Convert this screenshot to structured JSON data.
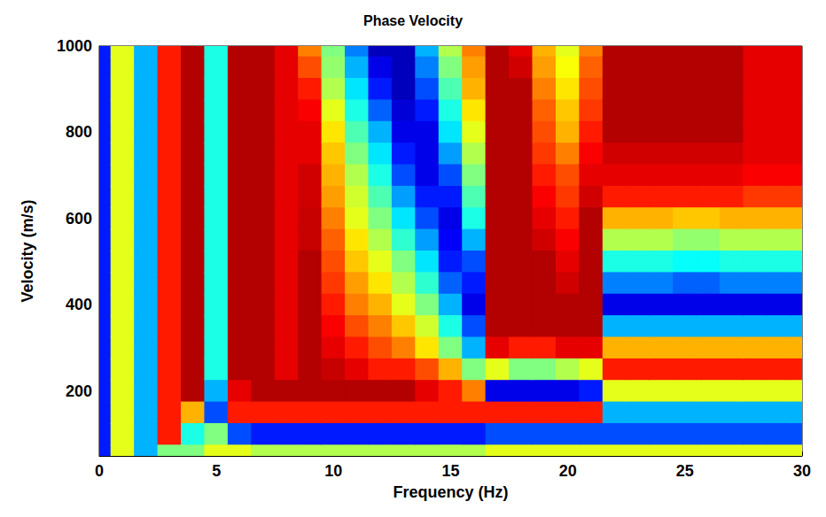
{
  "chart_data": {
    "type": "heatmap",
    "title": "Phase Velocity",
    "x_label": "Frequency (Hz)",
    "y_label": "Velocity (m/s)",
    "xlim": [
      0,
      30
    ],
    "xticks": [
      0,
      5,
      10,
      15,
      20,
      25,
      30
    ],
    "ylim": [
      50,
      1000
    ],
    "yticks": [
      200,
      400,
      600,
      800,
      1000
    ],
    "grid": false,
    "zlim": [
      0,
      1
    ],
    "cell_x": [
      0,
      1,
      2,
      3,
      4,
      5,
      6,
      7,
      8,
      9,
      10,
      11,
      12,
      13,
      14,
      15,
      16,
      17,
      18,
      19,
      20,
      21,
      22,
      23,
      24,
      25,
      26,
      27,
      28,
      29,
      30
    ],
    "cell_y": [
      1000,
      950,
      900,
      850,
      800,
      750,
      700,
      650,
      600,
      550,
      500,
      450,
      400,
      350,
      300,
      250,
      200,
      150,
      100,
      50
    ],
    "cells": [
      [
        0.15,
        0.15,
        0.15,
        0.15,
        0.15,
        0.15,
        0.15,
        0.15,
        0.15,
        0.15,
        0.15,
        0.15,
        0.15,
        0.15,
        0.15,
        0.15,
        0.15,
        0.15,
        0.15,
        0.15
      ],
      [
        0.6,
        0.6,
        0.6,
        0.6,
        0.6,
        0.6,
        0.6,
        0.6,
        0.6,
        0.6,
        0.6,
        0.6,
        0.6,
        0.6,
        0.6,
        0.6,
        0.6,
        0.6,
        0.6,
        0.6
      ],
      [
        0.3,
        0.3,
        0.3,
        0.3,
        0.3,
        0.3,
        0.3,
        0.3,
        0.3,
        0.3,
        0.3,
        0.3,
        0.3,
        0.3,
        0.3,
        0.3,
        0.3,
        0.3,
        0.3,
        0.3
      ],
      [
        0.85,
        0.85,
        0.85,
        0.85,
        0.85,
        0.85,
        0.85,
        0.85,
        0.85,
        0.85,
        0.85,
        0.85,
        0.85,
        0.85,
        0.85,
        0.85,
        0.85,
        0.85,
        0.85,
        0.5
      ],
      [
        0.95,
        0.95,
        0.95,
        0.95,
        0.95,
        0.95,
        0.95,
        0.95,
        0.95,
        0.95,
        0.95,
        0.95,
        0.95,
        0.95,
        0.95,
        0.95,
        0.95,
        0.7,
        0.4,
        0.5
      ],
      [
        0.4,
        0.4,
        0.4,
        0.4,
        0.4,
        0.4,
        0.4,
        0.4,
        0.4,
        0.4,
        0.4,
        0.4,
        0.4,
        0.4,
        0.4,
        0.4,
        0.3,
        0.2,
        0.5,
        0.6
      ],
      [
        0.95,
        0.95,
        0.95,
        0.95,
        0.95,
        0.95,
        0.95,
        0.95,
        0.95,
        0.95,
        0.95,
        0.95,
        0.95,
        0.95,
        0.95,
        0.95,
        0.9,
        0.85,
        0.2,
        0.6
      ],
      [
        0.95,
        0.95,
        0.95,
        0.95,
        0.95,
        0.95,
        0.95,
        0.95,
        0.95,
        0.95,
        0.95,
        0.95,
        0.95,
        0.95,
        0.95,
        0.95,
        0.95,
        0.85,
        0.15,
        0.55
      ],
      [
        0.9,
        0.9,
        0.9,
        0.9,
        0.9,
        0.9,
        0.9,
        0.9,
        0.9,
        0.9,
        0.9,
        0.9,
        0.9,
        0.9,
        0.9,
        0.9,
        0.95,
        0.85,
        0.15,
        0.55
      ],
      [
        0.75,
        0.8,
        0.85,
        0.88,
        0.9,
        0.9,
        0.92,
        0.92,
        0.93,
        0.93,
        0.95,
        0.95,
        0.95,
        0.95,
        0.95,
        0.95,
        0.95,
        0.85,
        0.15,
        0.55
      ],
      [
        0.5,
        0.52,
        0.55,
        0.6,
        0.65,
        0.68,
        0.7,
        0.72,
        0.75,
        0.78,
        0.8,
        0.82,
        0.85,
        0.88,
        0.9,
        0.93,
        0.95,
        0.85,
        0.15,
        0.55
      ],
      [
        0.25,
        0.3,
        0.35,
        0.4,
        0.45,
        0.5,
        0.55,
        0.58,
        0.6,
        0.65,
        0.68,
        0.72,
        0.75,
        0.8,
        0.85,
        0.9,
        0.95,
        0.85,
        0.15,
        0.55
      ],
      [
        0.05,
        0.1,
        0.15,
        0.22,
        0.3,
        0.35,
        0.4,
        0.45,
        0.5,
        0.55,
        0.6,
        0.65,
        0.7,
        0.75,
        0.8,
        0.85,
        0.95,
        0.85,
        0.15,
        0.55
      ],
      [
        0.05,
        0.05,
        0.05,
        0.08,
        0.1,
        0.15,
        0.2,
        0.28,
        0.35,
        0.42,
        0.5,
        0.55,
        0.6,
        0.68,
        0.75,
        0.85,
        0.95,
        0.85,
        0.15,
        0.55
      ],
      [
        0.3,
        0.25,
        0.2,
        0.15,
        0.1,
        0.1,
        0.1,
        0.15,
        0.2,
        0.28,
        0.35,
        0.42,
        0.5,
        0.58,
        0.65,
        0.8,
        0.9,
        0.85,
        0.15,
        0.55
      ],
      [
        0.55,
        0.5,
        0.45,
        0.4,
        0.35,
        0.28,
        0.2,
        0.15,
        0.1,
        0.12,
        0.15,
        0.22,
        0.3,
        0.4,
        0.5,
        0.7,
        0.85,
        0.85,
        0.15,
        0.55
      ],
      [
        0.75,
        0.72,
        0.7,
        0.65,
        0.6,
        0.55,
        0.5,
        0.45,
        0.4,
        0.3,
        0.2,
        0.15,
        0.1,
        0.2,
        0.3,
        0.5,
        0.75,
        0.85,
        0.15,
        0.55
      ],
      [
        0.95,
        0.95,
        0.95,
        0.95,
        0.95,
        0.95,
        0.95,
        0.95,
        0.95,
        0.95,
        0.95,
        0.95,
        0.95,
        0.95,
        0.9,
        0.6,
        0.1,
        0.85,
        0.2,
        0.6
      ],
      [
        0.9,
        0.92,
        0.95,
        0.95,
        0.95,
        0.95,
        0.95,
        0.95,
        0.95,
        0.95,
        0.95,
        0.95,
        0.95,
        0.95,
        0.85,
        0.5,
        0.1,
        0.85,
        0.2,
        0.6
      ],
      [
        0.7,
        0.72,
        0.75,
        0.78,
        0.8,
        0.82,
        0.85,
        0.88,
        0.9,
        0.92,
        0.95,
        0.95,
        0.95,
        0.95,
        0.85,
        0.5,
        0.1,
        0.85,
        0.2,
        0.6
      ],
      [
        0.6,
        0.62,
        0.65,
        0.68,
        0.7,
        0.75,
        0.8,
        0.82,
        0.85,
        0.88,
        0.9,
        0.92,
        0.95,
        0.95,
        0.9,
        0.55,
        0.1,
        0.85,
        0.2,
        0.6
      ],
      [
        0.75,
        0.78,
        0.8,
        0.82,
        0.85,
        0.88,
        0.9,
        0.92,
        0.95,
        0.95,
        0.95,
        0.95,
        0.95,
        0.95,
        0.9,
        0.6,
        0.15,
        0.85,
        0.2,
        0.6
      ],
      [
        0.95,
        0.95,
        0.95,
        0.95,
        0.95,
        0.92,
        0.9,
        0.85,
        0.7,
        0.55,
        0.4,
        0.25,
        0.1,
        0.3,
        0.7,
        0.85,
        0.6,
        0.3,
        0.2,
        0.6
      ],
      [
        0.95,
        0.95,
        0.95,
        0.95,
        0.95,
        0.92,
        0.9,
        0.85,
        0.7,
        0.55,
        0.4,
        0.25,
        0.1,
        0.3,
        0.7,
        0.85,
        0.6,
        0.3,
        0.2,
        0.6
      ],
      [
        0.95,
        0.95,
        0.95,
        0.95,
        0.95,
        0.92,
        0.9,
        0.85,
        0.7,
        0.55,
        0.4,
        0.25,
        0.1,
        0.3,
        0.7,
        0.85,
        0.6,
        0.3,
        0.2,
        0.6
      ],
      [
        0.95,
        0.95,
        0.95,
        0.95,
        0.95,
        0.92,
        0.9,
        0.85,
        0.68,
        0.52,
        0.38,
        0.22,
        0.1,
        0.3,
        0.7,
        0.85,
        0.6,
        0.3,
        0.2,
        0.6
      ],
      [
        0.95,
        0.95,
        0.95,
        0.95,
        0.95,
        0.92,
        0.9,
        0.85,
        0.68,
        0.52,
        0.38,
        0.22,
        0.1,
        0.3,
        0.7,
        0.85,
        0.6,
        0.3,
        0.2,
        0.6
      ],
      [
        0.95,
        0.95,
        0.95,
        0.95,
        0.95,
        0.92,
        0.9,
        0.85,
        0.7,
        0.55,
        0.4,
        0.25,
        0.1,
        0.3,
        0.7,
        0.85,
        0.6,
        0.3,
        0.2,
        0.6
      ],
      [
        0.9,
        0.9,
        0.9,
        0.9,
        0.9,
        0.9,
        0.88,
        0.82,
        0.7,
        0.55,
        0.4,
        0.25,
        0.1,
        0.3,
        0.7,
        0.85,
        0.6,
        0.3,
        0.2,
        0.6
      ],
      [
        0.9,
        0.9,
        0.9,
        0.9,
        0.9,
        0.9,
        0.88,
        0.82,
        0.7,
        0.55,
        0.4,
        0.25,
        0.1,
        0.3,
        0.7,
        0.85,
        0.6,
        0.3,
        0.2,
        0.6
      ],
      [
        0.9,
        0.9,
        0.9,
        0.9,
        0.9,
        0.9,
        0.88,
        0.82,
        0.7,
        0.55,
        0.4,
        0.25,
        0.1,
        0.3,
        0.7,
        0.85,
        0.6,
        0.3,
        0.2,
        0.6
      ]
    ]
  }
}
